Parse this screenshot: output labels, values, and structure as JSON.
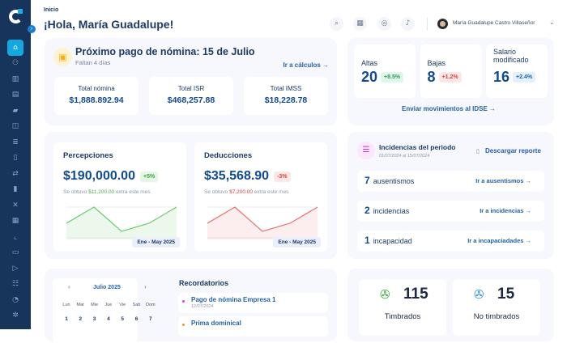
{
  "sidebar": {
    "icons": [
      "home-icon",
      "users-icon",
      "building-icon",
      "id-card-icon",
      "folder-icon",
      "book-icon",
      "list-icon",
      "document-icon",
      "transfer-icon",
      "database-icon",
      "network-icon",
      "grid-icon",
      "chart-icon",
      "folder-upload-icon",
      "file-export-icon",
      "sliders-icon",
      "pie-icon",
      "settings-icon"
    ]
  },
  "breadcrumb": "Inicio",
  "greeting": "¡Hola, María Guadalupe!",
  "header": {
    "user_name": "María Guadalupe Castro Villaseñor"
  },
  "payroll": {
    "title": "Próximo pago de nómina: 15 de Julio",
    "subtitle": "Faltan 4 días",
    "link": "Ir a cálculos →",
    "totals": [
      {
        "label": "Total nómina",
        "value": "$1,888.892.94"
      },
      {
        "label": "Total ISR",
        "value": "$468,257.88"
      },
      {
        "label": "Total IMSS",
        "value": "$18,228.78"
      }
    ]
  },
  "movements": {
    "items": [
      {
        "label": "Altas",
        "value": "20",
        "badge": "+8.5%"
      },
      {
        "label": "Bajas",
        "value": "8",
        "badge": "+1.2%"
      },
      {
        "label": "Salario modificado",
        "value": "16",
        "badge": "+2.4%"
      }
    ],
    "link": "Enviar movimientos al IDSE →"
  },
  "perceptions": {
    "title": "Percepciones",
    "amount": "$190,000.00",
    "badge": "+5%",
    "note_pre": "Se obtuvo ",
    "note_amt": "$11,200.00",
    "note_post": " extra este mes",
    "range": "Ene - May 2025",
    "trend": [
      3,
      5,
      2,
      3,
      5
    ],
    "color": "#6cc96a"
  },
  "deductions": {
    "title": "Deducciones",
    "amount": "$35,568.90",
    "badge": "-3%",
    "note_pre": "Se obtuvo ",
    "note_amt": "$7,200.00",
    "note_post": " extra este mes",
    "range": "Ene - May 2025",
    "trend": [
      3,
      5,
      2,
      3,
      5
    ],
    "color": "#e57373"
  },
  "incidents": {
    "title": "Incidencias del periodo",
    "period": "01/07/2024 al 15/07/2024",
    "download": "Descargar reporte",
    "rows": [
      {
        "count": "7",
        "label": "ausentismos",
        "link": "Ir a ausentismos →"
      },
      {
        "count": "2",
        "label": "incidencias",
        "link": "Ir a incidencias →"
      },
      {
        "count": "1",
        "label": "incapacidad",
        "link": "Ir a incapaciadades →"
      }
    ]
  },
  "calendar": {
    "month": "Julio 2025",
    "days": [
      "Lun",
      "Mar",
      "Mie",
      "Jue",
      "Vie",
      "Sab",
      "Dom"
    ],
    "dates": [
      "1",
      "2",
      "3",
      "4",
      "5",
      "6",
      "7"
    ]
  },
  "reminders": {
    "title": "Recordatorios",
    "items": [
      {
        "title": "Pago de nómina Empresa 1",
        "date": "12/07/2024",
        "color": "#d63fd6"
      },
      {
        "title": "Prima dominical",
        "date": "",
        "color": "#f0a020"
      }
    ]
  },
  "stamps": [
    {
      "value": "115",
      "label": "Timbrados"
    },
    {
      "value": "15",
      "label": "No timbrados"
    }
  ]
}
